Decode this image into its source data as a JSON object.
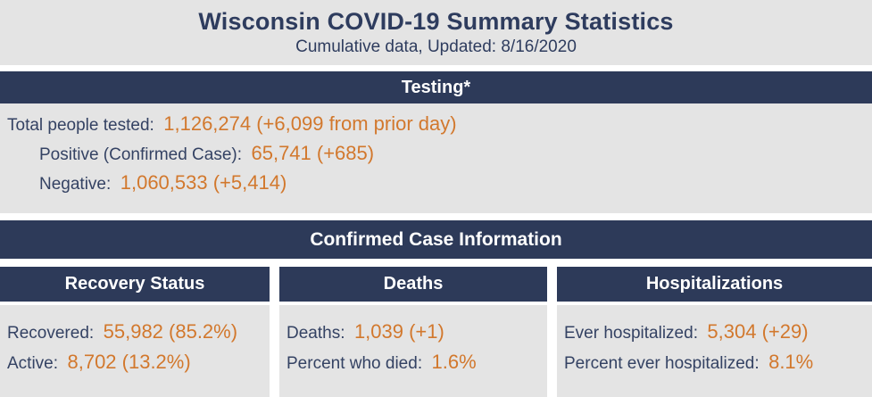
{
  "header": {
    "title": "Wisconsin COVID-19 Summary Statistics",
    "subtitle": "Cumulative data, Updated: 8/16/2020"
  },
  "testing": {
    "header": "Testing*",
    "rows": [
      {
        "label": "Total people tested:",
        "value": "1,126,274 (+6,099 from prior day)"
      },
      {
        "label": "Positive (Confirmed Case):",
        "value": "65,741 (+685)"
      },
      {
        "label": "Negative:",
        "value": "1,060,533 (+5,414)"
      }
    ]
  },
  "confirmed": {
    "header": "Confirmed Case Information",
    "columns": [
      {
        "header": "Recovery Status",
        "rows": [
          {
            "label": "Recovered:",
            "value": "55,982 (85.2%)"
          },
          {
            "label": "Active:",
            "value": "8,702 (13.2%)"
          }
        ]
      },
      {
        "header": "Deaths",
        "rows": [
          {
            "label": "Deaths:",
            "value": "1,039 (+1)"
          },
          {
            "label": "Percent who died:",
            "value": "1.6%"
          }
        ]
      },
      {
        "header": "Hospitalizations",
        "rows": [
          {
            "label": "Ever hospitalized:",
            "value": "5,304 (+29)"
          },
          {
            "label": "Percent ever hospitalized:",
            "value": "8.1%"
          }
        ]
      }
    ]
  },
  "colors": {
    "navy_bar": "#2d3a59",
    "label_text": "#344263",
    "value_orange": "#d2782d",
    "panel_gray": "#e4e4e4"
  }
}
